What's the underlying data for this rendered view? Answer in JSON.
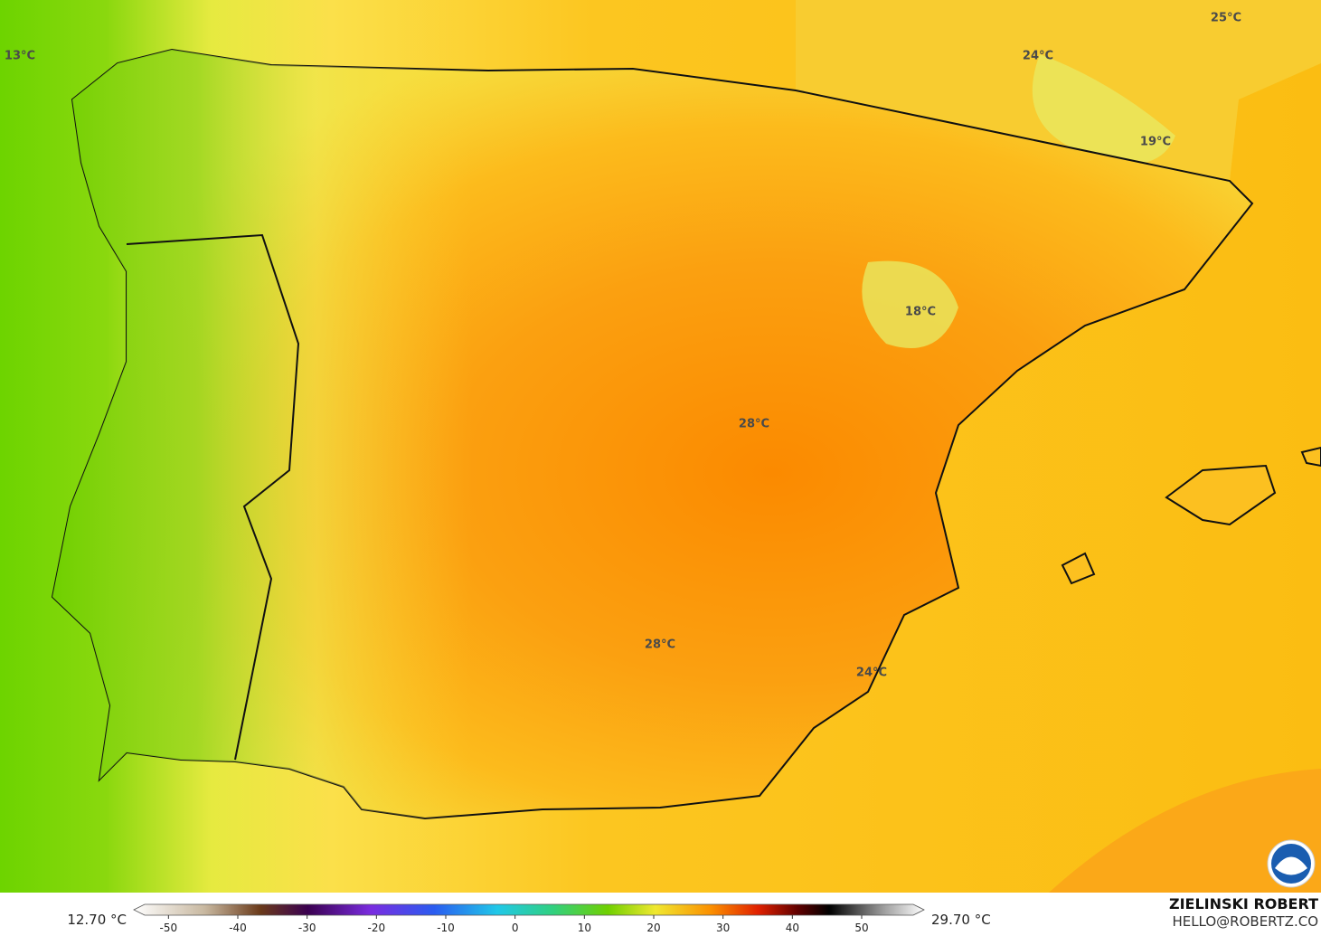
{
  "map": {
    "labels": [
      "13°C",
      "25°C",
      "24°C",
      "19°C",
      "18°C",
      "28°C",
      "28°C",
      "24°C"
    ],
    "credit": {
      "name": "ZIELINSKI ROBERT",
      "email": "HELLO@ROBERTZ.CO"
    }
  },
  "colorbar": {
    "min_label": "12.70 °C",
    "max_label": "29.70 °C",
    "lim": [
      -55,
      59
    ],
    "ticks": [
      -50,
      -40,
      -30,
      -20,
      -10,
      0,
      10,
      20,
      30,
      40,
      50
    ]
  }
}
